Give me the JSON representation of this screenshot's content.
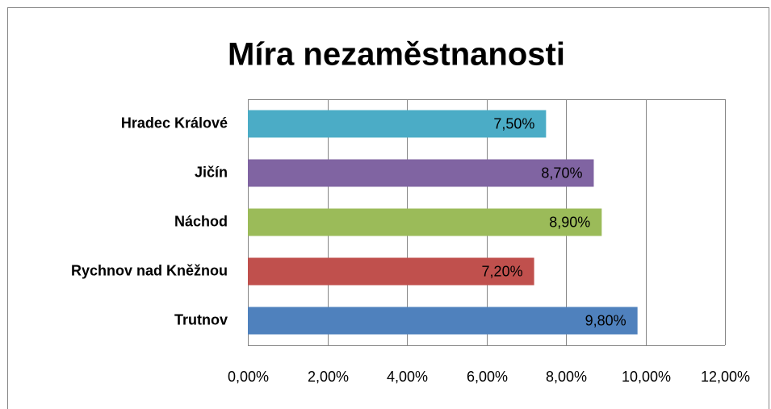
{
  "chart_data": {
    "type": "hbar",
    "title": "Míra nezaměstnanosti",
    "categories": [
      "Hradec Králové",
      "Jičín",
      "Náchod",
      "Rychnov nad Kněžnou",
      "Trutnov"
    ],
    "values": [
      7.5,
      8.7,
      8.9,
      7.2,
      9.8
    ],
    "value_labels": [
      "7,50%",
      "8,70%",
      "8,90%",
      "7,20%",
      "9,80%"
    ],
    "colors": [
      "#4bacc6",
      "#8064a2",
      "#9bbb59",
      "#c0504d",
      "#4f81bd"
    ],
    "xlim": [
      0,
      12
    ],
    "xticks": [
      {
        "value": 0,
        "label": "0,00%"
      },
      {
        "value": 2,
        "label": "2,00%"
      },
      {
        "value": 4,
        "label": "4,00%"
      },
      {
        "value": 6,
        "label": "6,00%"
      },
      {
        "value": 8,
        "label": "8,00%"
      },
      {
        "value": 10,
        "label": "10,00%"
      },
      {
        "value": 12,
        "label": "12,00%"
      }
    ],
    "grid": true
  }
}
